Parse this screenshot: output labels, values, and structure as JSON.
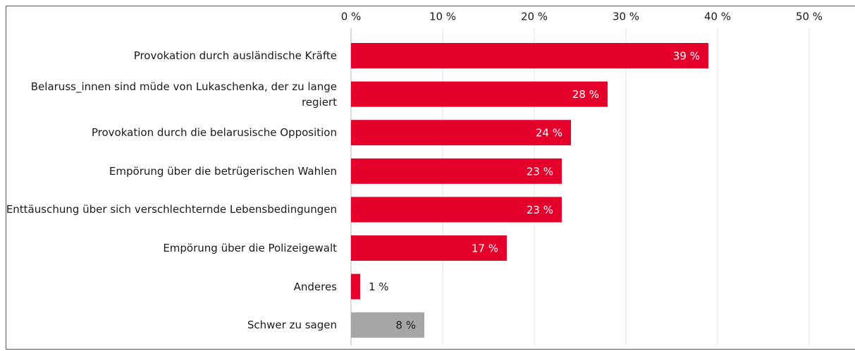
{
  "chart_data": {
    "type": "bar",
    "orientation": "horizontal",
    "categories": [
      "Provokation durch ausländische Kräfte",
      "Belaruss_innen sind müde von Lukaschenka, der zu lange regiert",
      "Provokation durch die belarusische Opposition",
      "Empörung über die betrügerischen Wahlen",
      "Enttäuschung über sich verschlechternde Lebensbedingungen",
      "Empörung über die Polizeigewalt",
      "Anderes",
      "Schwer zu sagen"
    ],
    "values": [
      39,
      28,
      24,
      23,
      23,
      17,
      1,
      8
    ],
    "value_labels": [
      "39 %",
      "28 %",
      "24 %",
      "23 %",
      "23 %",
      "17 %",
      "1 %",
      "8 %"
    ],
    "colors": [
      "#e4002b",
      "#e4002b",
      "#e4002b",
      "#e4002b",
      "#e4002b",
      "#e4002b",
      "#e4002b",
      "#a6a6a6"
    ],
    "value_label_colors": [
      "#ffffff",
      "#ffffff",
      "#ffffff",
      "#ffffff",
      "#ffffff",
      "#ffffff",
      "#1a1a1a",
      "#1a1a1a"
    ],
    "xlim": [
      0,
      50
    ],
    "xticks": [
      {
        "value": 0,
        "label": "0 %"
      },
      {
        "value": 10,
        "label": "10 %"
      },
      {
        "value": 20,
        "label": "20 %"
      },
      {
        "value": 30,
        "label": "30 %"
      },
      {
        "value": 40,
        "label": "40 %"
      },
      {
        "value": 50,
        "label": "50 %"
      }
    ],
    "grid": true
  }
}
